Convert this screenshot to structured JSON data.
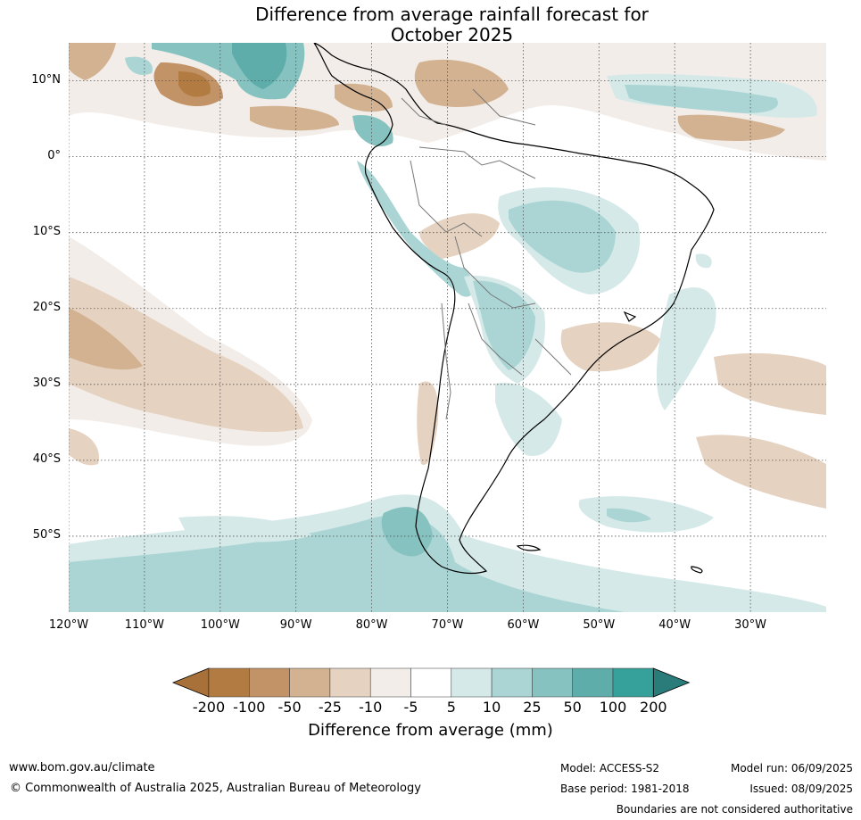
{
  "title": {
    "line1": "Difference from average rainfall forecast for",
    "line2": "October 2025"
  },
  "map": {
    "lon_range": [
      -120,
      -20
    ],
    "lat_range": [
      -60,
      15
    ],
    "lat_ticks": [
      {
        "value": 10,
        "label": "10°N"
      },
      {
        "value": 0,
        "label": "0°"
      },
      {
        "value": -10,
        "label": "10°S"
      },
      {
        "value": -20,
        "label": "20°S"
      },
      {
        "value": -30,
        "label": "30°S"
      },
      {
        "value": -40,
        "label": "40°S"
      },
      {
        "value": -50,
        "label": "50°S"
      }
    ],
    "lon_ticks": [
      {
        "value": -120,
        "label": "120°W"
      },
      {
        "value": -110,
        "label": "110°W"
      },
      {
        "value": -100,
        "label": "100°W"
      },
      {
        "value": -90,
        "label": "90°W"
      },
      {
        "value": -80,
        "label": "80°W"
      },
      {
        "value": -70,
        "label": "70°W"
      },
      {
        "value": -60,
        "label": "60°W"
      },
      {
        "value": -50,
        "label": "50°W"
      },
      {
        "value": -40,
        "label": "40°W"
      },
      {
        "value": -30,
        "label": "30°W"
      }
    ],
    "gridlines": true
  },
  "colorbar": {
    "title": "Difference from average (mm)",
    "labels": [
      "-200",
      "-100",
      "-50",
      "-25",
      "-10",
      "-5",
      "5",
      "10",
      "25",
      "50",
      "100",
      "200"
    ],
    "colors": [
      "#a9713a",
      "#b27b42",
      "#c29366",
      "#d3b292",
      "#e5d2c0",
      "#f2ede8",
      "#ffffff",
      "#d5e9e8",
      "#aad5d4",
      "#86c2c0",
      "#5eadab",
      "#36a09b",
      "#2a7c7a"
    ]
  },
  "footer": {
    "website": "www.bom.gov.au/climate",
    "copyright": "© Commonwealth of Australia 2025, Australian Bureau of Meteorology",
    "model": "Model: ACCESS-S2",
    "base_period": "Base period: 1981-2018",
    "model_run": "Model run: 06/09/2025",
    "issued": "Issued: 08/09/2025",
    "disclaimer": "Boundaries are not considered authoritative"
  }
}
